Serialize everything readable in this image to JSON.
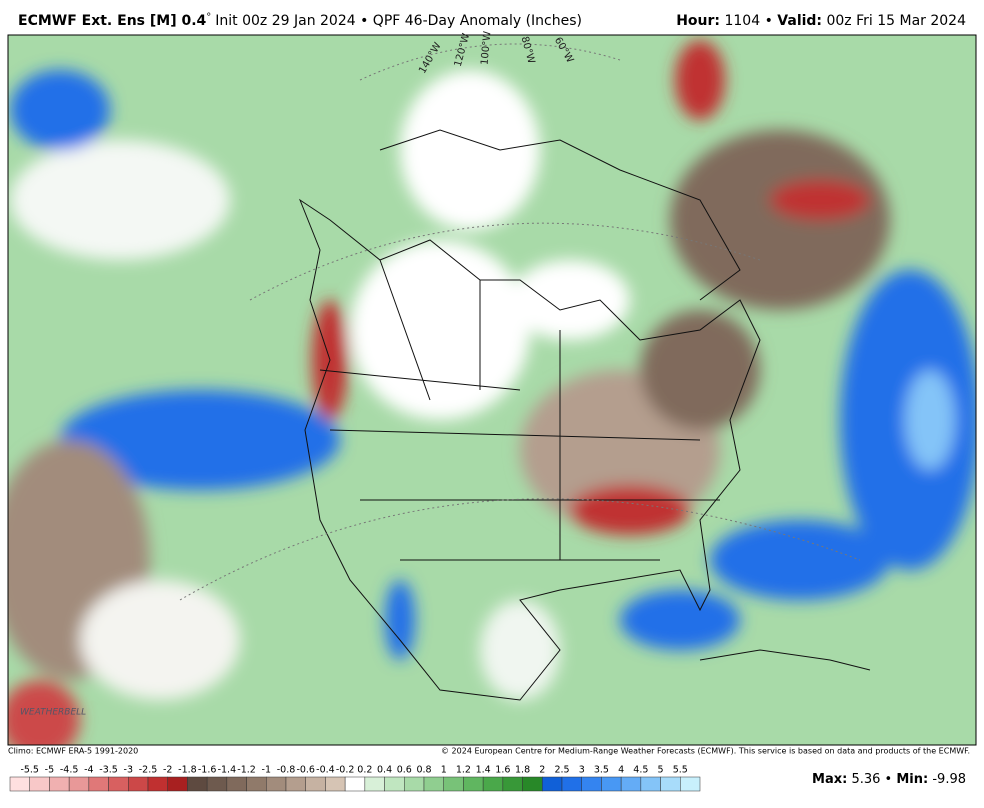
{
  "header": {
    "model": "ECMWF Ext. Ens [M] 0.4",
    "degree": "°",
    "init": "Init 00z 29 Jan 2024 • QPF 46-Day Anomaly (Inches)",
    "hour_label": "Hour:",
    "hour": "1104",
    "separator": "•",
    "valid_label": "Valid:",
    "valid": "00z Fri 15 Mar 2024"
  },
  "map": {
    "longitudes": [
      "140°W",
      "120°W",
      "100°W",
      "80°W",
      "60°W"
    ],
    "logo": "WEATHERBELL"
  },
  "footer": {
    "climo": "Climo: ECMWF ERA-5 1991-2020",
    "copyright": "© 2024 European Centre for Medium-Range Weather Forecasts (ECMWF). This service is based on data and products of the ECMWF."
  },
  "colorbar": {
    "labels": [
      -5.5,
      -5,
      -4.5,
      -4,
      -3.5,
      -3,
      -2.5,
      -2,
      -1.8,
      -1.6,
      -1.4,
      -1.2,
      -1,
      -0.8,
      -0.6,
      -0.4,
      -0.2,
      0.2,
      0.4,
      0.6,
      0.8,
      1,
      1.2,
      1.4,
      1.6,
      1.8,
      2,
      2.5,
      3,
      3.5,
      4,
      4.5,
      5,
      5.5
    ],
    "colors": [
      "#ffe0e0",
      "#f8c8c8",
      "#f0b0b0",
      "#e89898",
      "#e07878",
      "#d86060",
      "#cc4848",
      "#c03030",
      "#a82020",
      "#5e4a40",
      "#6e5a4e",
      "#806a5c",
      "#907a6a",
      "#a28c7c",
      "#b49e8e",
      "#c6b2a2",
      "#d6c4b4",
      "#ffffff",
      "#d8f0d8",
      "#c0e6c0",
      "#a8daa8",
      "#90ce90",
      "#78c278",
      "#60b660",
      "#4aa84a",
      "#389838",
      "#288828",
      "#1060d8",
      "#2070e8",
      "#3484f0",
      "#4898f4",
      "#64acf6",
      "#84c4f8",
      "#a8dcfa",
      "#c8f0fc"
    ]
  },
  "stats": {
    "max_label": "Max:",
    "max": "5.36",
    "separator": "•",
    "min_label": "Min:",
    "min": "-9.98"
  }
}
